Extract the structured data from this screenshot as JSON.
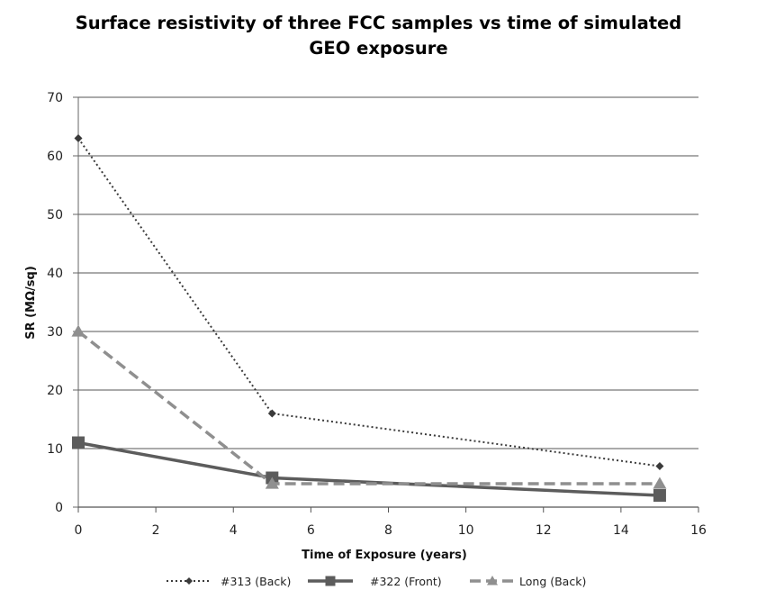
{
  "chart_data": {
    "type": "line",
    "title_line1": "Surface resistivity of three FCC samples vs  time of simulated",
    "title_line2": "GEO exposure",
    "xlabel": "Time of Exposure  (years)",
    "ylabel": "SR (MΩ/sq)",
    "xlim": [
      0,
      16
    ],
    "ylim": [
      0,
      70
    ],
    "xticks": [
      0,
      2,
      4,
      6,
      8,
      10,
      12,
      14,
      16
    ],
    "yticks": [
      0,
      10,
      20,
      30,
      40,
      50,
      60,
      70
    ],
    "grid": "horizontal",
    "legend_position": "bottom",
    "series": [
      {
        "name": "#313 (Back)",
        "x": [
          0,
          5,
          15
        ],
        "y": [
          63,
          16,
          7
        ],
        "color": "#3a3a3a",
        "line": "dotted",
        "marker": "diamond"
      },
      {
        "name": "#322 (Front)",
        "x": [
          0,
          5,
          15
        ],
        "y": [
          11,
          5,
          2
        ],
        "color": "#5c5c5c",
        "line": "solid",
        "marker": "square"
      },
      {
        "name": "Long (Back)",
        "x": [
          0,
          5,
          15
        ],
        "y": [
          30,
          4,
          4
        ],
        "color": "#8f8f8f",
        "line": "dashed",
        "marker": "triangle"
      }
    ]
  }
}
